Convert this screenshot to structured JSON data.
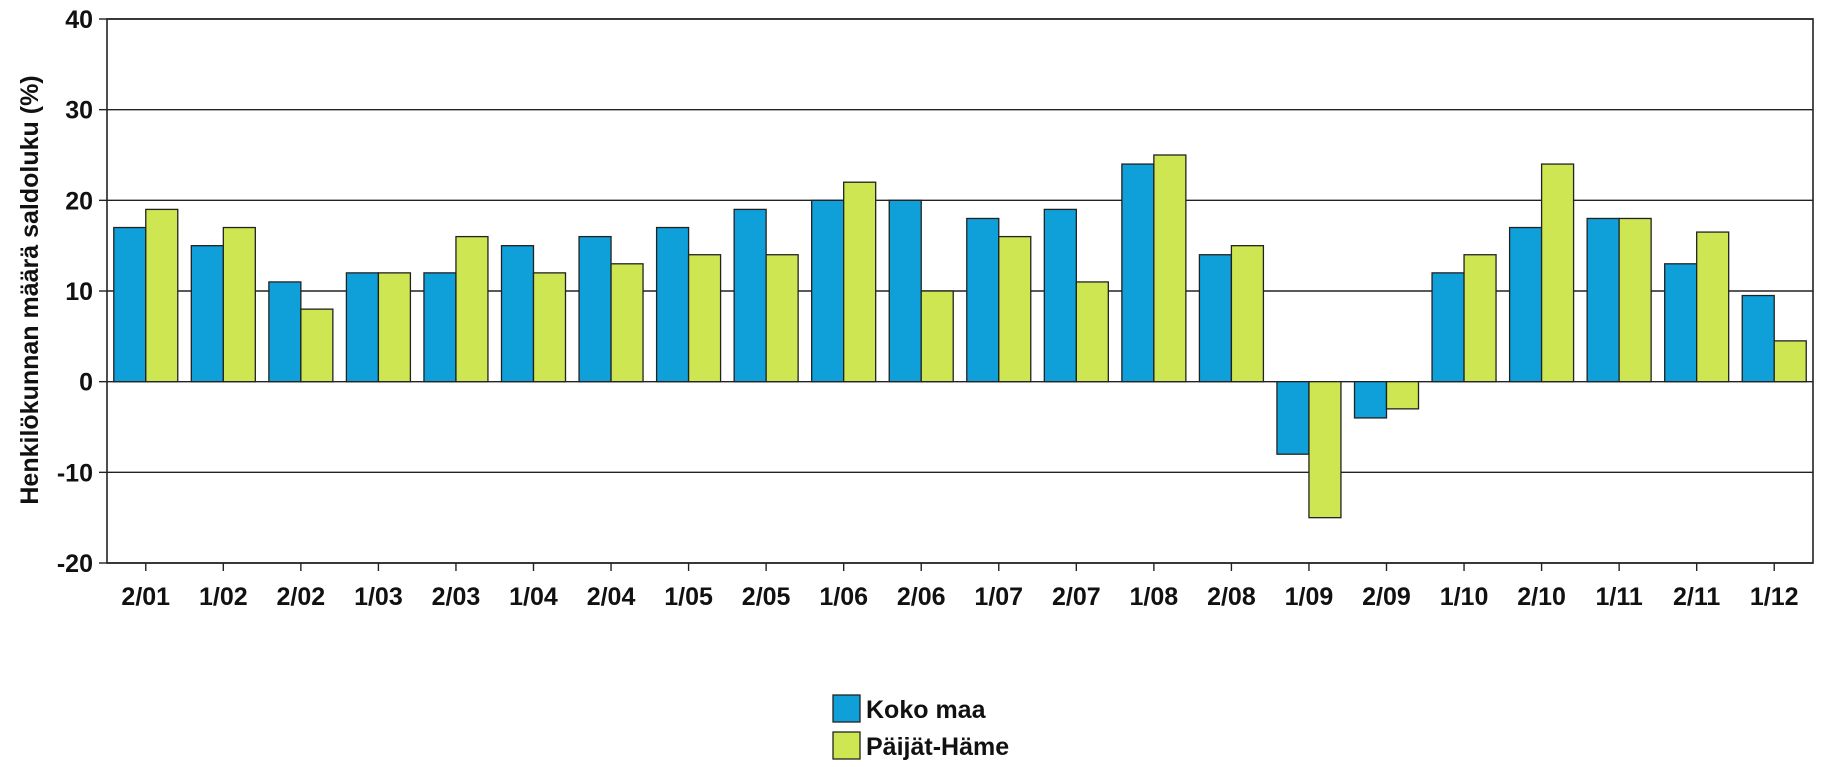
{
  "chart_data": {
    "type": "bar",
    "ylabel": "Henkilökunnan määrä saldoluku (%)",
    "xlabel": "",
    "ylim": [
      -20,
      40
    ],
    "yticks": [
      -20,
      -10,
      0,
      10,
      20,
      30,
      40
    ],
    "grid": "horizontal",
    "legend_position": "bottom-center",
    "categories": [
      "2/01",
      "1/02",
      "2/02",
      "1/03",
      "2/03",
      "1/04",
      "2/04",
      "1/05",
      "2/05",
      "1/06",
      "2/06",
      "1/07",
      "2/07",
      "1/08",
      "2/08",
      "1/09",
      "2/09",
      "1/10",
      "2/10",
      "1/11",
      "2/11",
      "1/12"
    ],
    "series": [
      {
        "name": "Koko maa",
        "color": "#0f9fd9",
        "values": [
          17,
          15,
          11,
          12,
          12,
          15,
          16,
          17,
          19,
          20,
          20,
          18,
          19,
          24,
          14,
          -8,
          -4,
          12,
          17,
          18,
          13,
          9.5
        ]
      },
      {
        "name": "Päijät-Häme",
        "color": "#cde652",
        "values": [
          19,
          17,
          8,
          12,
          16,
          12,
          13,
          14,
          14,
          22,
          10,
          16,
          11,
          25,
          15,
          -15,
          -3,
          14,
          24,
          18,
          16.5,
          4.5
        ]
      }
    ]
  }
}
